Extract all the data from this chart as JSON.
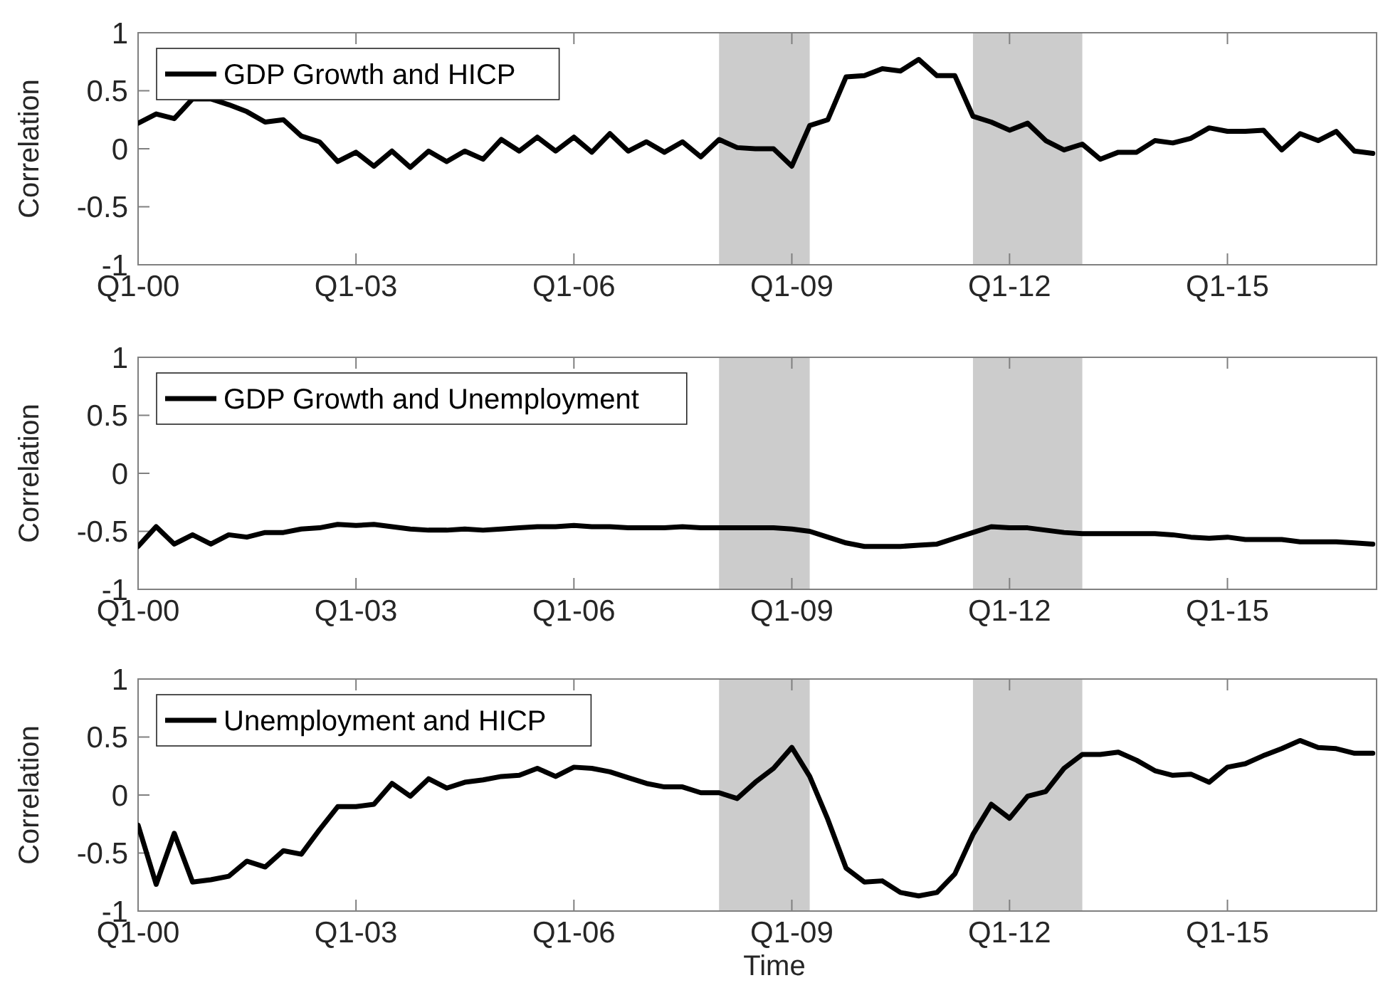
{
  "chart_data": [
    {
      "type": "line",
      "ylabel": "Correlation",
      "legend": "top left",
      "xlim": [
        "2000-01",
        "2017-01-20"
      ],
      "ylim": [
        -1,
        1
      ],
      "xticks": [
        {
          "value": "2000-01",
          "label": "Q1-00"
        },
        {
          "value": "2003-01",
          "label": "Q1-03"
        },
        {
          "value": "2006-01",
          "label": "Q1-06"
        },
        {
          "value": "2009-01",
          "label": "Q1-09"
        },
        {
          "value": "2012-01",
          "label": "Q1-12"
        },
        {
          "value": "2015-01",
          "label": "Q1-15"
        }
      ],
      "yticks": [
        -1,
        -0.5,
        0,
        0.5,
        1
      ],
      "bands": [
        {
          "axis": "x",
          "from": "2008-01",
          "to": "2009-04",
          "color": "#cccccc"
        },
        {
          "axis": "x",
          "from": "2011-07",
          "to": "2013-01",
          "color": "#cccccc"
        }
      ],
      "x": [
        "2000-01",
        "2000-04",
        "2000-07",
        "2000-10",
        "2001-01",
        "2001-04",
        "2001-07",
        "2001-10",
        "2002-01",
        "2002-04",
        "2002-07",
        "2002-10",
        "2003-01",
        "2003-04",
        "2003-07",
        "2003-10",
        "2004-01",
        "2004-04",
        "2004-07",
        "2004-10",
        "2005-01",
        "2005-04",
        "2005-07",
        "2005-10",
        "2006-01",
        "2006-04",
        "2006-07",
        "2006-10",
        "2007-01",
        "2007-04",
        "2007-07",
        "2007-10",
        "2008-01",
        "2008-04",
        "2008-07",
        "2008-10",
        "2009-01",
        "2009-04",
        "2009-07",
        "2009-10",
        "2010-01",
        "2010-04",
        "2010-07",
        "2010-10",
        "2011-01",
        "2011-04",
        "2011-07",
        "2011-10",
        "2012-01",
        "2012-04",
        "2012-07",
        "2012-10",
        "2013-01",
        "2013-04",
        "2013-07",
        "2013-10",
        "2014-01",
        "2014-04",
        "2014-07",
        "2014-10",
        "2015-01",
        "2015-04",
        "2015-07",
        "2015-10",
        "2016-01",
        "2016-04",
        "2016-07",
        "2016-10",
        "2017-01"
      ],
      "series": [
        {
          "name": "GDP Growth and HICP",
          "color": "#000000",
          "values": [
            0.22,
            0.3,
            0.26,
            0.43,
            0.43,
            0.38,
            0.32,
            0.23,
            0.25,
            0.11,
            0.06,
            -0.11,
            -0.03,
            -0.15,
            -0.02,
            -0.16,
            -0.02,
            -0.11,
            -0.02,
            -0.09,
            0.08,
            -0.02,
            0.1,
            -0.02,
            0.1,
            -0.03,
            0.13,
            -0.02,
            0.06,
            -0.03,
            0.06,
            -0.07,
            0.08,
            0.01,
            0.0,
            0.0,
            -0.15,
            0.2,
            0.25,
            0.62,
            0.63,
            0.69,
            0.67,
            0.77,
            0.63,
            0.63,
            0.28,
            0.23,
            0.16,
            0.22,
            0.07,
            -0.01,
            0.04,
            -0.09,
            -0.03,
            -0.03,
            0.07,
            0.05,
            0.09,
            0.18,
            0.15,
            0.15,
            0.16,
            -0.01,
            0.13,
            0.07,
            0.15,
            -0.02,
            -0.04
          ]
        }
      ]
    },
    {
      "type": "line",
      "ylabel": "Correlation",
      "legend": "top left",
      "xlim": [
        "2000-01",
        "2017-01-20"
      ],
      "ylim": [
        -1,
        1
      ],
      "xticks": [
        {
          "value": "2000-01",
          "label": "Q1-00"
        },
        {
          "value": "2003-01",
          "label": "Q1-03"
        },
        {
          "value": "2006-01",
          "label": "Q1-06"
        },
        {
          "value": "2009-01",
          "label": "Q1-09"
        },
        {
          "value": "2012-01",
          "label": "Q1-12"
        },
        {
          "value": "2015-01",
          "label": "Q1-15"
        }
      ],
      "yticks": [
        -1,
        -0.5,
        0,
        0.5,
        1
      ],
      "bands": [
        {
          "axis": "x",
          "from": "2008-01",
          "to": "2009-04",
          "color": "#cccccc"
        },
        {
          "axis": "x",
          "from": "2011-07",
          "to": "2013-01",
          "color": "#cccccc"
        }
      ],
      "x": [
        "2000-01",
        "2000-04",
        "2000-07",
        "2000-10",
        "2001-01",
        "2001-04",
        "2001-07",
        "2001-10",
        "2002-01",
        "2002-04",
        "2002-07",
        "2002-10",
        "2003-01",
        "2003-04",
        "2003-07",
        "2003-10",
        "2004-01",
        "2004-04",
        "2004-07",
        "2004-10",
        "2005-01",
        "2005-04",
        "2005-07",
        "2005-10",
        "2006-01",
        "2006-04",
        "2006-07",
        "2006-10",
        "2007-01",
        "2007-04",
        "2007-07",
        "2007-10",
        "2008-01",
        "2008-04",
        "2008-07",
        "2008-10",
        "2009-01",
        "2009-04",
        "2009-07",
        "2009-10",
        "2010-01",
        "2010-04",
        "2010-07",
        "2010-10",
        "2011-01",
        "2011-04",
        "2011-07",
        "2011-10",
        "2012-01",
        "2012-04",
        "2012-07",
        "2012-10",
        "2013-01",
        "2013-04",
        "2013-07",
        "2013-10",
        "2014-01",
        "2014-04",
        "2014-07",
        "2014-10",
        "2015-01",
        "2015-04",
        "2015-07",
        "2015-10",
        "2016-01",
        "2016-04",
        "2016-07",
        "2016-10",
        "2017-01"
      ],
      "series": [
        {
          "name": "GDP Growth and Unemployment",
          "color": "#000000",
          "values": [
            -0.63,
            -0.46,
            -0.61,
            -0.53,
            -0.61,
            -0.53,
            -0.55,
            -0.51,
            -0.51,
            -0.48,
            -0.47,
            -0.44,
            -0.45,
            -0.44,
            -0.46,
            -0.48,
            -0.49,
            -0.49,
            -0.48,
            -0.49,
            -0.48,
            -0.47,
            -0.46,
            -0.46,
            -0.45,
            -0.46,
            -0.46,
            -0.47,
            -0.47,
            -0.47,
            -0.46,
            -0.47,
            -0.47,
            -0.47,
            -0.47,
            -0.47,
            -0.48,
            -0.5,
            -0.55,
            -0.6,
            -0.63,
            -0.63,
            -0.63,
            -0.62,
            -0.61,
            -0.56,
            -0.51,
            -0.46,
            -0.47,
            -0.47,
            -0.49,
            -0.51,
            -0.52,
            -0.52,
            -0.52,
            -0.52,
            -0.52,
            -0.53,
            -0.55,
            -0.56,
            -0.55,
            -0.57,
            -0.57,
            -0.57,
            -0.59,
            -0.59,
            -0.59,
            -0.6,
            -0.61
          ]
        }
      ]
    },
    {
      "type": "line",
      "xlabel": "Time",
      "ylabel": "Correlation",
      "legend": "top left",
      "xlim": [
        "2000-01",
        "2017-01-20"
      ],
      "ylim": [
        -1,
        1
      ],
      "xticks": [
        {
          "value": "2000-01",
          "label": "Q1-00"
        },
        {
          "value": "2003-01",
          "label": "Q1-03"
        },
        {
          "value": "2006-01",
          "label": "Q1-06"
        },
        {
          "value": "2009-01",
          "label": "Q1-09"
        },
        {
          "value": "2012-01",
          "label": "Q1-12"
        },
        {
          "value": "2015-01",
          "label": "Q1-15"
        }
      ],
      "yticks": [
        -1,
        -0.5,
        0,
        0.5,
        1
      ],
      "bands": [
        {
          "axis": "x",
          "from": "2008-01",
          "to": "2009-04",
          "color": "#cccccc"
        },
        {
          "axis": "x",
          "from": "2011-07",
          "to": "2013-01",
          "color": "#cccccc"
        }
      ],
      "x": [
        "2000-01",
        "2000-04",
        "2000-07",
        "2000-10",
        "2001-01",
        "2001-04",
        "2001-07",
        "2001-10",
        "2002-01",
        "2002-04",
        "2002-07",
        "2002-10",
        "2003-01",
        "2003-04",
        "2003-07",
        "2003-10",
        "2004-01",
        "2004-04",
        "2004-07",
        "2004-10",
        "2005-01",
        "2005-04",
        "2005-07",
        "2005-10",
        "2006-01",
        "2006-04",
        "2006-07",
        "2006-10",
        "2007-01",
        "2007-04",
        "2007-07",
        "2007-10",
        "2008-01",
        "2008-04",
        "2008-07",
        "2008-10",
        "2009-01",
        "2009-04",
        "2009-07",
        "2009-10",
        "2010-01",
        "2010-04",
        "2010-07",
        "2010-10",
        "2011-01",
        "2011-04",
        "2011-07",
        "2011-10",
        "2012-01",
        "2012-04",
        "2012-07",
        "2012-10",
        "2013-01",
        "2013-04",
        "2013-07",
        "2013-10",
        "2014-01",
        "2014-04",
        "2014-07",
        "2014-10",
        "2015-01",
        "2015-04",
        "2015-07",
        "2015-10",
        "2016-01",
        "2016-04",
        "2016-07",
        "2016-10",
        "2017-01"
      ],
      "series": [
        {
          "name": "Unemployment and HICP",
          "color": "#000000",
          "values": [
            -0.26,
            -0.77,
            -0.33,
            -0.75,
            -0.73,
            -0.7,
            -0.57,
            -0.62,
            -0.48,
            -0.51,
            -0.3,
            -0.1,
            -0.1,
            -0.08,
            0.1,
            -0.01,
            0.14,
            0.06,
            0.11,
            0.13,
            0.16,
            0.17,
            0.23,
            0.16,
            0.24,
            0.23,
            0.2,
            0.15,
            0.1,
            0.07,
            0.07,
            0.02,
            0.02,
            -0.03,
            0.11,
            0.23,
            0.41,
            0.16,
            -0.21,
            -0.63,
            -0.75,
            -0.74,
            -0.84,
            -0.87,
            -0.84,
            -0.68,
            -0.34,
            -0.08,
            -0.2,
            -0.01,
            0.03,
            0.23,
            0.35,
            0.35,
            0.37,
            0.3,
            0.21,
            0.17,
            0.18,
            0.11,
            0.24,
            0.27,
            0.34,
            0.4,
            0.47,
            0.41,
            0.4,
            0.36,
            0.36
          ]
        }
      ]
    }
  ]
}
